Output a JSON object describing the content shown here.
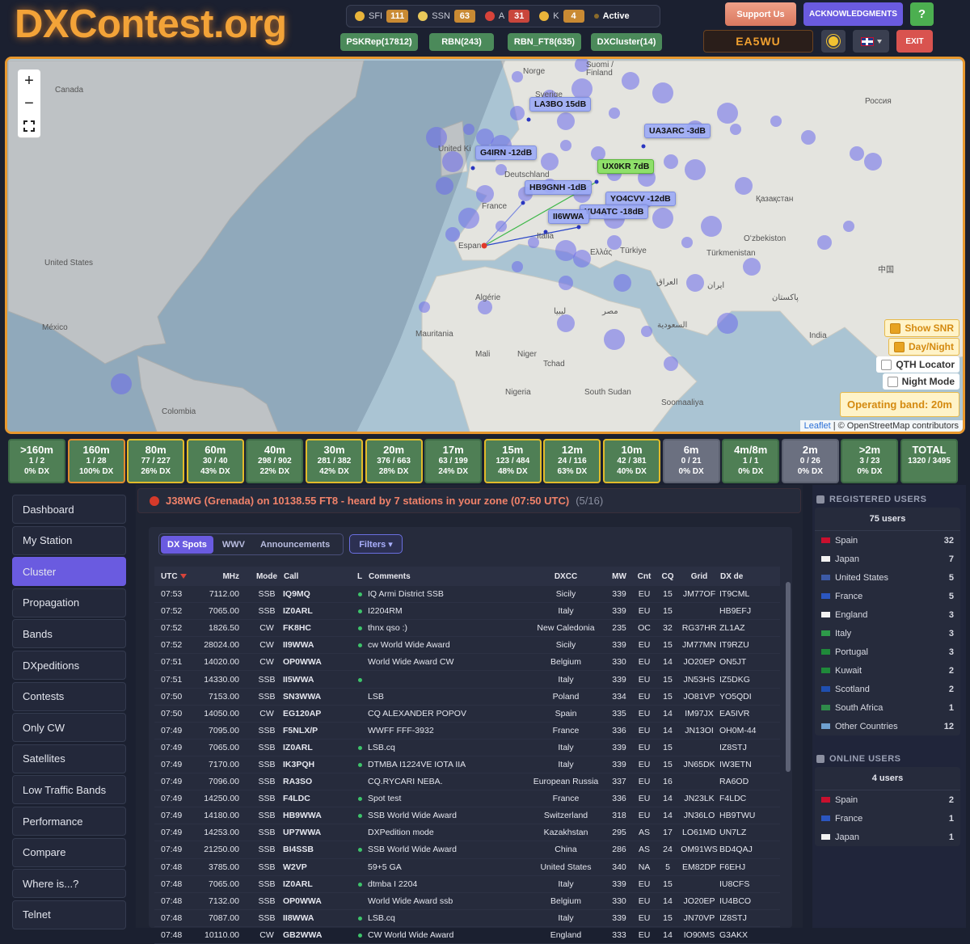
{
  "header": {
    "logo": "DXContest.org",
    "solar": [
      {
        "label": "SFI",
        "value": "111"
      },
      {
        "label": "SSN",
        "value": "63"
      },
      {
        "label": "A",
        "value": "31"
      },
      {
        "label": "K",
        "value": "4"
      }
    ],
    "status": "Active",
    "sources": [
      "PSKRep(17812)",
      "RBN(243)",
      "RBN_FT8(635)",
      "DXCluster(14)"
    ],
    "support": "Support Us",
    "acknowledgments": "ACKNOWLEDGMENTS",
    "help": "?",
    "callsign": "EA5WU",
    "exit": "EXIT"
  },
  "map": {
    "zoom_in": "+",
    "zoom_out": "−",
    "spots": [
      "LA3BO 15dB",
      "UA3ARC -3dB",
      "G4IRN -12dB",
      "UX0KR 7dB",
      "HB9GNH -1dB",
      "YO4CVV -12dB",
      "YU4ATC -18dB",
      "II6WWA"
    ],
    "places": [
      "Canada",
      "United States",
      "México",
      "Colombia",
      "Suomi /",
      "Finland",
      "Norge",
      "Sverige",
      "Россия",
      "United Ki",
      "Deutschland",
      "France",
      "Espan",
      "Italia",
      "Ελλάς",
      "Türkiye",
      "Қазақстан",
      "Oʻzbekiston",
      "Türkmenistan",
      "Algérie",
      "Mauritania",
      "Mali",
      "Niger",
      "Tchad",
      "Nigeria",
      "South Sudan",
      "Soomaaliya",
      "India",
      "مصر",
      "العراق",
      "ایران",
      "پاکستان",
      "中国",
      "ليبيا",
      "السعودية"
    ],
    "options": [
      {
        "label": "Show SNR",
        "checked": true
      },
      {
        "label": "Day/Night",
        "checked": true
      },
      {
        "label": "QTH Locator",
        "checked": false
      },
      {
        "label": "Night Mode",
        "checked": false
      }
    ],
    "operating_band": "Operating band: 20m",
    "leaflet": "Leaflet",
    "attribution": "| © OpenStreetMap contributors"
  },
  "bands": [
    {
      "name": ">160m",
      "count": "1 / 2",
      "dx": "0% DX",
      "border": "#3d6a45",
      "color": "#4f7f55"
    },
    {
      "name": "160m",
      "count": "1 / 28",
      "dx": "100% DX",
      "border": "#e38b2c",
      "color": "#4f7f55"
    },
    {
      "name": "80m",
      "count": "77 / 227",
      "dx": "26% DX",
      "border": "#e2bb2a",
      "color": "#4f7f55"
    },
    {
      "name": "60m",
      "count": "30 / 40",
      "dx": "43% DX",
      "border": "#e2bb2a",
      "color": "#4f7f55"
    },
    {
      "name": "40m",
      "count": "298 / 902",
      "dx": "22% DX",
      "border": "#3d6a45",
      "color": "#4f7f55"
    },
    {
      "name": "30m",
      "count": "281 / 382",
      "dx": "42% DX",
      "border": "#e2bb2a",
      "color": "#4f7f55"
    },
    {
      "name": "20m",
      "count": "376 / 663",
      "dx": "28% DX",
      "border": "#e2bb2a",
      "color": "#4f7f55"
    },
    {
      "name": "17m",
      "count": "63 / 199",
      "dx": "24% DX",
      "border": "#3d6a45",
      "color": "#4f7f55"
    },
    {
      "name": "15m",
      "count": "123 / 484",
      "dx": "48% DX",
      "border": "#e2bb2a",
      "color": "#4f7f55"
    },
    {
      "name": "12m",
      "count": "24 / 116",
      "dx": "63% DX",
      "border": "#e2bb2a",
      "color": "#4f7f55"
    },
    {
      "name": "10m",
      "count": "42 / 381",
      "dx": "40% DX",
      "border": "#e2bb2a",
      "color": "#4f7f55"
    },
    {
      "name": "6m",
      "count": "0 / 21",
      "dx": "0% DX",
      "border": "#5c6170",
      "color": "#6b7080"
    },
    {
      "name": "4m/8m",
      "count": "1 / 1",
      "dx": "0% DX",
      "border": "#3d6a45",
      "color": "#4f7f55"
    },
    {
      "name": "2m",
      "count": "0 / 26",
      "dx": "0% DX",
      "border": "#5c6170",
      "color": "#6b7080"
    },
    {
      "name": ">2m",
      "count": "3 / 23",
      "dx": "0% DX",
      "border": "#3d6a45",
      "color": "#4f7f55"
    },
    {
      "name": "TOTAL",
      "count": "1320 / 3495",
      "dx": null,
      "border": "#3d6a45",
      "color": "#4f7f55"
    }
  ],
  "menu": {
    "items": [
      "Dashboard",
      "My Station",
      "Cluster",
      "Propagation",
      "Bands",
      "DXpeditions",
      "Contests",
      "Only CW",
      "Satellites",
      "Low Traffic Bands",
      "Performance",
      "Compare",
      "Where is...?",
      "Telnet"
    ],
    "active": 2
  },
  "alert": {
    "text": "J38WG (Grenada) on 10138.55 FT8 - heard by 7 stations in your zone (07:50 UTC)",
    "page": "(5/16)"
  },
  "tabs": {
    "items": [
      "DX Spots",
      "WWV",
      "Announcements"
    ],
    "active": 0,
    "filters": "Filters ▾"
  },
  "table": {
    "headers": [
      "UTC",
      "MHz",
      "Mode",
      "Call",
      "L",
      "Comments",
      "DXCC",
      "MW",
      "Cnt",
      "CQ",
      "Grid",
      "DX de"
    ],
    "rows": [
      [
        "07:53",
        "7112.00",
        "SSB",
        "IQ9MQ",
        true,
        "IQ Armi District SSB",
        "Sicily",
        "339",
        "EU",
        "15",
        "JM77OF",
        "IT9CML"
      ],
      [
        "07:52",
        "7065.00",
        "SSB",
        "IZ0ARL",
        true,
        "I2204RM",
        "Italy",
        "339",
        "EU",
        "15",
        null,
        "HB9EFJ"
      ],
      [
        "07:52",
        "1826.50",
        "CW",
        "FK8HC",
        true,
        "thnx qso :)",
        "New Caledonia",
        "235",
        "OC",
        "32",
        "RG37HR",
        "ZL1AZ"
      ],
      [
        "07:52",
        "28024.00",
        "CW",
        "II9WWA",
        true,
        "cw World Wide Award",
        "Sicily",
        "339",
        "EU",
        "15",
        "JM77MN",
        "IT9RZU"
      ],
      [
        "07:51",
        "14020.00",
        "CW",
        "OP0WWA",
        false,
        "World Wide Award CW",
        "Belgium",
        "330",
        "EU",
        "14",
        "JO20EP",
        "ON5JT"
      ],
      [
        "07:51",
        "14330.00",
        "SSB",
        "II5WWA",
        true,
        null,
        "Italy",
        "339",
        "EU",
        "15",
        "JN53HS",
        "IZ5DKG"
      ],
      [
        "07:50",
        "7153.00",
        "SSB",
        "SN3WWA",
        false,
        "LSB",
        "Poland",
        "334",
        "EU",
        "15",
        "JO81VP",
        "YO5QDI"
      ],
      [
        "07:50",
        "14050.00",
        "CW",
        "EG120AP",
        false,
        "CQ ALEXANDER POPOV",
        "Spain",
        "335",
        "EU",
        "14",
        "IM97JX",
        "EA5IVR"
      ],
      [
        "07:49",
        "7095.00",
        "SSB",
        "F5NLX/P",
        false,
        "WWFF FFF-3932",
        "France",
        "336",
        "EU",
        "14",
        "JN13OI",
        "OH0M-44"
      ],
      [
        "07:49",
        "7065.00",
        "SSB",
        "IZ0ARL",
        true,
        "LSB.cq",
        "Italy",
        "339",
        "EU",
        "15",
        null,
        "IZ8STJ"
      ],
      [
        "07:49",
        "7170.00",
        "SSB",
        "IK3PQH",
        true,
        "DTMBA I1224VE IOTA IIA",
        "Italy",
        "339",
        "EU",
        "15",
        "JN65DK",
        "IW3ETN"
      ],
      [
        "07:49",
        "7096.00",
        "SSB",
        "RA3SO",
        false,
        "CQ.RYCARI NEBA.",
        "European Russia",
        "337",
        "EU",
        "16",
        null,
        "RA6OD"
      ],
      [
        "07:49",
        "14250.00",
        "SSB",
        "F4LDC",
        true,
        "Spot test",
        "France",
        "336",
        "EU",
        "14",
        "JN23LK",
        "F4LDC"
      ],
      [
        "07:49",
        "14180.00",
        "SSB",
        "HB9WWA",
        true,
        "SSB World Wide Award",
        "Switzerland",
        "318",
        "EU",
        "14",
        "JN36LO",
        "HB9TWU"
      ],
      [
        "07:49",
        "14253.00",
        "SSB",
        "UP7WWA",
        false,
        "DXPedition mode",
        "Kazakhstan",
        "295",
        "AS",
        "17",
        "LO61MD",
        "UN7LZ"
      ],
      [
        "07:49",
        "21250.00",
        "SSB",
        "BI4SSB",
        true,
        "SSB World Wide Award",
        "China",
        "286",
        "AS",
        "24",
        "OM91WS",
        "BD4QAJ"
      ],
      [
        "07:48",
        "3785.00",
        "SSB",
        "W2VP",
        false,
        "59+5 GA",
        "United States",
        "340",
        "NA",
        "5",
        "EM82DP",
        "F6EHJ"
      ],
      [
        "07:48",
        "7065.00",
        "SSB",
        "IZ0ARL",
        true,
        "dtmba I 2204",
        "Italy",
        "339",
        "EU",
        "15",
        null,
        "IU8CFS"
      ],
      [
        "07:48",
        "7132.00",
        "SSB",
        "OP0WWA",
        false,
        "World Wide Award ssb",
        "Belgium",
        "330",
        "EU",
        "14",
        "JO20EP",
        "IU4BCO"
      ],
      [
        "07:48",
        "7087.00",
        "SSB",
        "II8WWA",
        true,
        "LSB.cq",
        "Italy",
        "339",
        "EU",
        "15",
        "JN70VP",
        "IZ8STJ"
      ],
      [
        "07:48",
        "10110.00",
        "CW",
        "GB2WWA",
        true,
        "CW World Wide Award",
        "England",
        "333",
        "EU",
        "14",
        "IO90MS",
        "G3AKX"
      ]
    ]
  },
  "registered": {
    "title": "REGISTERED USERS",
    "total": "75 users",
    "rows": [
      [
        "Spain",
        "32"
      ],
      [
        "Japan",
        "7"
      ],
      [
        "United States",
        "5"
      ],
      [
        "France",
        "5"
      ],
      [
        "England",
        "3"
      ],
      [
        "Italy",
        "3"
      ],
      [
        "Portugal",
        "3"
      ],
      [
        "Kuwait",
        "2"
      ],
      [
        "Scotland",
        "2"
      ],
      [
        "South Africa",
        "1"
      ],
      [
        "Other Countries",
        "12"
      ]
    ]
  },
  "online": {
    "title": "ONLINE USERS",
    "total": "4 users",
    "rows": [
      [
        "Spain",
        "2"
      ],
      [
        "France",
        "1"
      ],
      [
        "Japan",
        "1"
      ]
    ]
  }
}
